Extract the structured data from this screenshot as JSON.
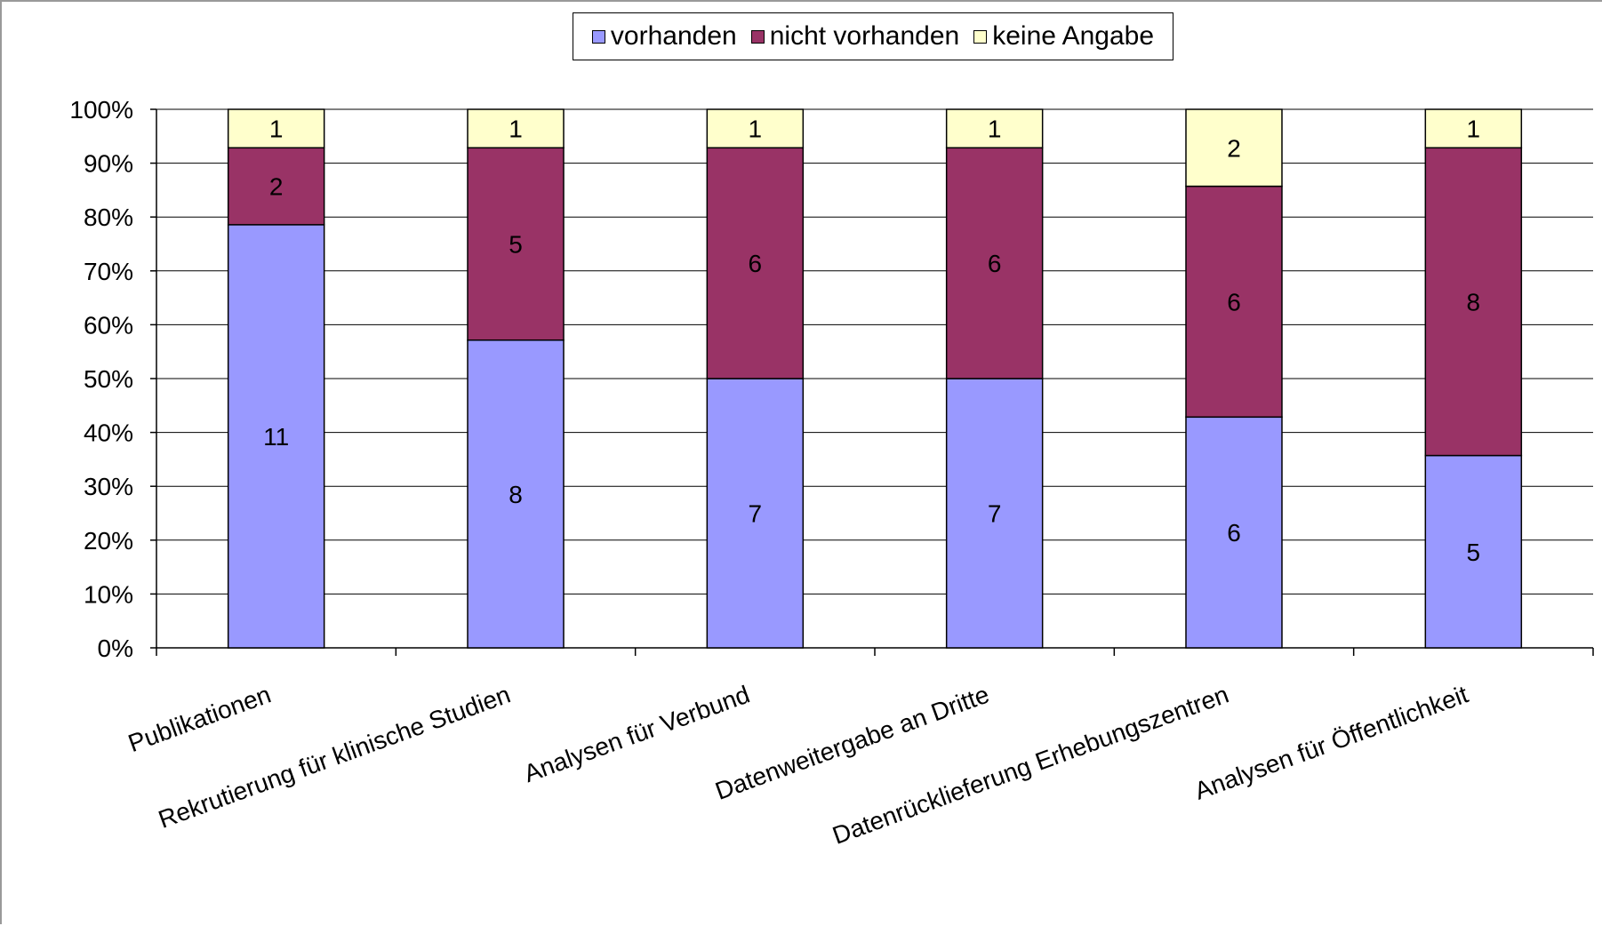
{
  "chart_data": {
    "type": "bar",
    "stacked": true,
    "normalized": true,
    "categories": [
      "Publikationen",
      "Rekrutierung für klinische Studien",
      "Analysen für Verbund",
      "Datenweitergabe an Dritte",
      "Datenrücklieferung Erhebungszentren",
      "Analysen für Öffentlichkeit"
    ],
    "series": [
      {
        "name": "vorhanden",
        "color": "#9999ff",
        "values": [
          11,
          8,
          7,
          7,
          6,
          5
        ]
      },
      {
        "name": "nicht vorhanden",
        "color": "#993366",
        "values": [
          2,
          5,
          6,
          6,
          6,
          8
        ]
      },
      {
        "name": "keine Angabe",
        "color": "#ffffcc",
        "values": [
          1,
          1,
          1,
          1,
          2,
          1
        ]
      }
    ],
    "yticks": [
      "0%",
      "10%",
      "20%",
      "30%",
      "40%",
      "50%",
      "60%",
      "70%",
      "80%",
      "90%",
      "100%"
    ],
    "ylim": [
      0,
      100
    ],
    "grid": true,
    "legend_position": "top-center"
  }
}
